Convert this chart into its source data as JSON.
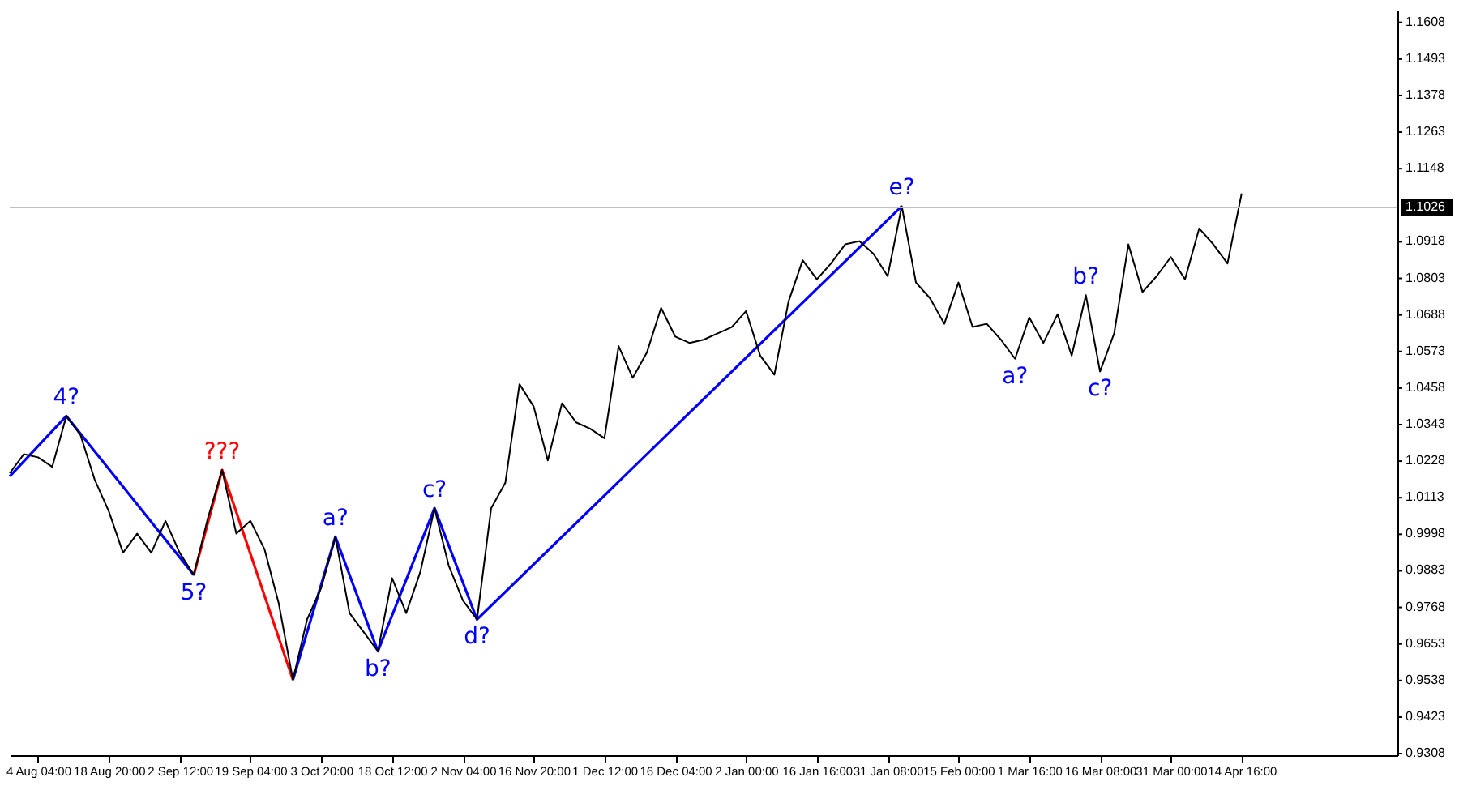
{
  "chart_data": {
    "type": "line",
    "categories": [
      null,
      null,
      "4 Aug 04:00",
      null,
      null,
      null,
      null,
      "18 Aug 20:00",
      null,
      null,
      null,
      null,
      "2 Sep 12:00",
      null,
      null,
      null,
      null,
      "19 Sep 04:00",
      null,
      null,
      null,
      null,
      "3 Oct 20:00",
      null,
      null,
      null,
      null,
      "18 Oct 12:00",
      null,
      null,
      null,
      null,
      "2 Nov 04:00",
      null,
      null,
      null,
      null,
      "16 Nov 20:00",
      null,
      null,
      null,
      null,
      "1 Dec 12:00",
      null,
      null,
      null,
      null,
      "16 Dec 04:00",
      null,
      null,
      null,
      null,
      "2 Jan 00:00",
      null,
      null,
      null,
      null,
      "16 Jan 16:00",
      null,
      null,
      null,
      null,
      "31 Jan 08:00",
      null,
      null,
      null,
      null,
      "15 Feb 00:00",
      null,
      null,
      null,
      null,
      "1 Mar 16:00",
      null,
      null,
      null,
      null,
      "16 Mar 08:00",
      null,
      null,
      null,
      null,
      "31 Mar 00:00",
      null,
      null,
      null,
      null,
      "14 Apr 16:00",
      null,
      null,
      null,
      null,
      null,
      null,
      null,
      null,
      null,
      null,
      null
    ],
    "ylim": [
      0.9303,
      1.1648
    ],
    "yticks": [
      0.9308,
      0.9423,
      0.9538,
      0.9653,
      0.9768,
      0.9883,
      0.9998,
      1.0113,
      1.0228,
      1.0343,
      1.0458,
      1.0573,
      1.0688,
      1.0803,
      1.0918,
      1.1148,
      1.1263,
      1.1378,
      1.1493,
      1.1608
    ],
    "series": [
      {
        "color": "#000000",
        "values": [
          1.019,
          1.025,
          1.024,
          1.021,
          1.037,
          1.031,
          1.017,
          1.007,
          0.994,
          1.0,
          0.994,
          1.004,
          0.994,
          0.987,
          1.005,
          1.02,
          1.0,
          1.004,
          0.995,
          0.978,
          0.954,
          0.973,
          0.983,
          0.999,
          0.975,
          0.969,
          0.963,
          0.986,
          0.975,
          0.988,
          1.008,
          0.99,
          0.979,
          0.973,
          1.008,
          1.016,
          1.047,
          1.04,
          1.023,
          1.041,
          1.035,
          1.033,
          1.03,
          1.059,
          1.049,
          1.057,
          1.071,
          1.062,
          1.06,
          1.061,
          1.063,
          1.065,
          1.07,
          1.056,
          1.05,
          1.073,
          1.086,
          1.08,
          1.085,
          1.091,
          1.092,
          1.088,
          1.081,
          1.103,
          1.079,
          1.074,
          1.066,
          1.079,
          1.065,
          1.066,
          1.061,
          1.055,
          1.068,
          1.06,
          1.069,
          1.056,
          1.075,
          1.051,
          1.063,
          1.091,
          1.076,
          1.081,
          1.087,
          1.08,
          1.096,
          1.091,
          1.085,
          1.107,
          null,
          null,
          null,
          null,
          null,
          null,
          null,
          null,
          null,
          null,
          null
        ]
      },
      {
        "color": "#0000ff",
        "values": [
          1.018,
          null,
          null,
          null,
          1.037,
          null,
          null,
          null,
          null,
          null,
          null,
          null,
          null,
          0.987,
          null,
          null,
          null,
          null,
          null,
          null,
          null,
          null,
          null,
          null,
          null,
          null,
          null,
          null,
          null,
          null,
          null,
          null,
          null,
          null,
          null,
          null,
          null,
          null,
          null,
          null,
          null,
          null,
          null,
          null,
          null,
          null,
          null,
          null,
          null,
          null,
          null,
          null,
          null,
          null,
          null,
          null,
          null,
          null,
          null,
          null,
          null,
          null,
          null,
          null,
          null,
          null,
          null,
          null,
          null,
          null,
          null,
          null,
          null,
          null,
          null,
          null,
          null,
          null,
          null,
          null,
          null,
          null,
          null,
          null,
          null,
          null,
          null,
          null,
          null,
          null,
          null,
          null,
          null,
          null,
          null,
          null,
          null,
          null,
          null
        ]
      },
      {
        "color": "#ff0000",
        "values": [
          null,
          null,
          null,
          null,
          null,
          null,
          null,
          null,
          null,
          null,
          null,
          null,
          null,
          0.987,
          null,
          1.02,
          null,
          null,
          null,
          null,
          0.954,
          null,
          null,
          null,
          null,
          null,
          null,
          null,
          null,
          null,
          null,
          null,
          null,
          null,
          null,
          null,
          null,
          null,
          null,
          null,
          null,
          null,
          null,
          null,
          null,
          null,
          null,
          null,
          null,
          null,
          null,
          null,
          null,
          null,
          null,
          null,
          null,
          null,
          null,
          null,
          null,
          null,
          null,
          null,
          null,
          null,
          null,
          null,
          null,
          null,
          null,
          null,
          null,
          null,
          null,
          null,
          null,
          null,
          null,
          null,
          null,
          null,
          null,
          null,
          null,
          null,
          null,
          null,
          null,
          null,
          null,
          null,
          null,
          null,
          null,
          null,
          null,
          null,
          null
        ]
      },
      {
        "color": "#0000ff",
        "values": [
          null,
          null,
          null,
          null,
          null,
          null,
          null,
          null,
          null,
          null,
          null,
          null,
          null,
          null,
          null,
          null,
          null,
          null,
          null,
          null,
          0.954,
          null,
          null,
          0.999,
          null,
          null,
          0.963,
          null,
          null,
          null,
          1.008,
          null,
          null,
          0.973,
          null,
          null,
          null,
          null,
          null,
          null,
          null,
          null,
          null,
          null,
          null,
          null,
          null,
          null,
          null,
          null,
          null,
          null,
          null,
          null,
          null,
          null,
          null,
          null,
          null,
          null,
          null,
          null,
          null,
          1.103,
          null,
          null,
          null,
          null,
          null,
          null,
          null,
          null,
          null,
          null,
          null,
          null,
          null,
          null,
          null,
          null,
          null,
          null,
          null,
          null,
          null,
          null,
          null,
          null,
          null,
          null,
          null,
          null,
          null,
          null,
          null,
          null,
          null,
          null,
          null
        ]
      }
    ],
    "ref_lines": [
      {
        "axis": "y",
        "value": 1.1026,
        "label": "1.1026",
        "color": "#c0c0c0"
      }
    ],
    "annotations": [
      {
        "text": "4?",
        "y": 1.037
      },
      {
        "text": "5?",
        "y": 0.987
      },
      {
        "text": "???",
        "y": 1.02
      },
      {
        "text": "a?",
        "y": 0.999
      },
      {
        "text": "b?",
        "y": 0.963
      },
      {
        "text": "c?",
        "y": 1.008
      },
      {
        "text": "d?",
        "y": 0.973
      },
      {
        "text": "e?",
        "y": 1.103
      },
      {
        "text": "a?",
        "y": 1.055
      },
      {
        "text": "b?",
        "y": 1.075
      },
      {
        "text": "c?",
        "y": 1.051
      }
    ]
  }
}
